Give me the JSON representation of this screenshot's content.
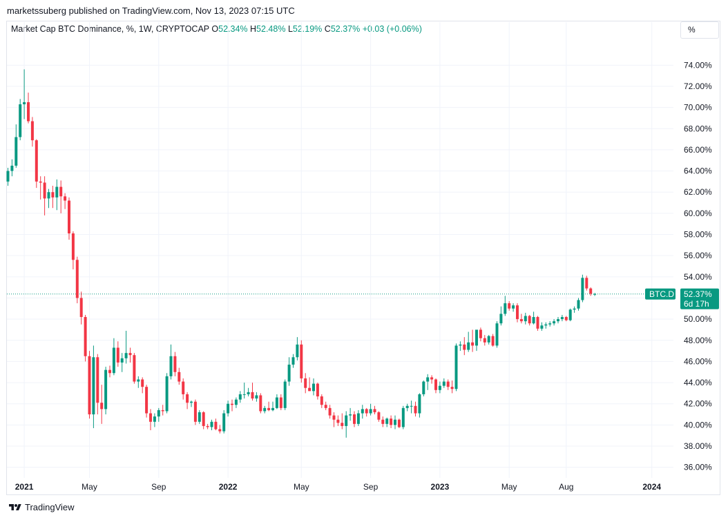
{
  "publish_line": "marketssuberg published on TradingView.com, Nov 13, 2023 07:15 UTC",
  "legend": {
    "symbol": "Market Cap BTC Dominance, %, 1W, CRYPTOCAP",
    "o_label": "O",
    "o_value": "52.34%",
    "h_label": "H",
    "h_value": "52.48%",
    "l_label": "L",
    "l_value": "52.19%",
    "c_label": "C",
    "c_value": "52.37%",
    "change": "+0.03 (+0.06%)"
  },
  "unit_button": "%",
  "price_tag": {
    "name": "BTC.D",
    "value": "52.37%",
    "countdown": "6d 17h"
  },
  "footer": {
    "brand": "TradingView",
    "logo_icon": "tradingview-logo-icon"
  },
  "colors": {
    "up": "#089981",
    "down": "#f23645",
    "grid": "#f0f3fa",
    "text": "#131722"
  },
  "chart_data": {
    "type": "candlestick",
    "title": "Market Cap BTC Dominance, %, 1W, CRYPTOCAP",
    "x_ticks": [
      {
        "week": 4,
        "label": "2021",
        "bold": true
      },
      {
        "week": 20,
        "label": "May",
        "bold": false
      },
      {
        "week": 37,
        "label": "Sep",
        "bold": false
      },
      {
        "week": 54,
        "label": "2022",
        "bold": true
      },
      {
        "week": 72,
        "label": "May",
        "bold": false
      },
      {
        "week": 89,
        "label": "Sep",
        "bold": false
      },
      {
        "week": 106,
        "label": "2023",
        "bold": true
      },
      {
        "week": 123,
        "label": "May",
        "bold": false
      },
      {
        "week": 137,
        "label": "Aug",
        "bold": false
      },
      {
        "week": 158,
        "label": "2024",
        "bold": true
      }
    ],
    "y_ticks": [
      36,
      38,
      40,
      42,
      44,
      46,
      48,
      50,
      52,
      54,
      56,
      58,
      60,
      62,
      64,
      66,
      68,
      70,
      72,
      74
    ],
    "y_tick_suffix": "%",
    "ylim": [
      35,
      76.5
    ],
    "weeks": [
      [
        63.0,
        64.3,
        62.6,
        64.0
      ],
      [
        64.0,
        65.1,
        63.5,
        64.5
      ],
      [
        64.5,
        68.4,
        64.3,
        67.2
      ],
      [
        67.2,
        70.8,
        66.9,
        70.3
      ],
      [
        70.3,
        73.6,
        68.9,
        70.5
      ],
      [
        70.5,
        71.4,
        68.5,
        68.7
      ],
      [
        68.7,
        69.1,
        66.3,
        66.9
      ],
      [
        66.9,
        67.0,
        62.4,
        63.0
      ],
      [
        63.0,
        63.5,
        61.3,
        62.9
      ],
      [
        62.9,
        63.5,
        59.8,
        61.4
      ],
      [
        61.4,
        62.3,
        60.5,
        62.0
      ],
      [
        62.0,
        62.6,
        60.5,
        61.5
      ],
      [
        61.5,
        63.2,
        60.3,
        62.5
      ],
      [
        62.5,
        63.1,
        60.0,
        61.6
      ],
      [
        61.6,
        61.9,
        60.4,
        61.2
      ],
      [
        61.2,
        61.5,
        57.5,
        58.1
      ],
      [
        58.1,
        58.3,
        54.7,
        55.6
      ],
      [
        55.6,
        55.9,
        51.5,
        52.0
      ],
      [
        52.0,
        52.6,
        49.5,
        50.2
      ],
      [
        50.2,
        50.4,
        46.0,
        46.5
      ],
      [
        46.5,
        47.0,
        40.6,
        41.0
      ],
      [
        41.0,
        47.5,
        39.7,
        46.4
      ],
      [
        46.4,
        46.7,
        41.0,
        42.1
      ],
      [
        42.1,
        43.8,
        40.1,
        41.5
      ],
      [
        41.5,
        45.5,
        41.0,
        45.2
      ],
      [
        45.2,
        45.6,
        44.5,
        44.9
      ],
      [
        44.9,
        48.2,
        44.7,
        47.3
      ],
      [
        47.3,
        47.9,
        45.5,
        45.9
      ],
      [
        45.9,
        46.8,
        45.0,
        46.3
      ],
      [
        46.3,
        48.9,
        45.8,
        46.8
      ],
      [
        46.8,
        47.3,
        45.9,
        46.6
      ],
      [
        46.6,
        46.8,
        43.9,
        44.1
      ],
      [
        44.1,
        44.6,
        43.5,
        44.3
      ],
      [
        44.3,
        44.5,
        43.0,
        43.6
      ],
      [
        43.6,
        43.8,
        40.7,
        41.1
      ],
      [
        41.1,
        41.5,
        39.5,
        40.3
      ],
      [
        40.3,
        41.1,
        39.8,
        40.8
      ],
      [
        40.8,
        41.6,
        40.3,
        41.4
      ],
      [
        41.4,
        41.9,
        40.9,
        41.3
      ],
      [
        41.3,
        44.9,
        41.1,
        44.6
      ],
      [
        44.6,
        47.6,
        44.3,
        46.5
      ],
      [
        46.5,
        46.9,
        44.6,
        45.0
      ],
      [
        45.0,
        45.4,
        43.8,
        44.1
      ],
      [
        44.1,
        44.4,
        42.4,
        42.9
      ],
      [
        42.9,
        43.1,
        41.5,
        42.1
      ],
      [
        42.1,
        42.3,
        41.7,
        42.2
      ],
      [
        42.2,
        42.4,
        40.0,
        40.3
      ],
      [
        40.3,
        41.4,
        40.1,
        41.2
      ],
      [
        41.2,
        41.3,
        39.6,
        39.9
      ],
      [
        39.9,
        40.1,
        39.6,
        39.8
      ],
      [
        39.8,
        40.5,
        39.5,
        40.3
      ],
      [
        40.3,
        40.6,
        39.5,
        39.6
      ],
      [
        39.6,
        40.0,
        39.2,
        39.4
      ],
      [
        39.4,
        41.4,
        39.2,
        41.1
      ],
      [
        41.1,
        42.3,
        40.8,
        42.0
      ],
      [
        42.0,
        42.4,
        41.3,
        41.9
      ],
      [
        41.9,
        42.6,
        41.6,
        42.4
      ],
      [
        42.4,
        43.2,
        42.1,
        42.9
      ],
      [
        42.9,
        44.0,
        42.5,
        42.9
      ],
      [
        42.9,
        43.5,
        42.7,
        43.1
      ],
      [
        43.1,
        44.0,
        42.3,
        42.5
      ],
      [
        42.5,
        43.1,
        42.2,
        42.8
      ],
      [
        42.8,
        43.0,
        41.1,
        41.3
      ],
      [
        41.3,
        41.8,
        41.1,
        41.6
      ],
      [
        41.6,
        42.2,
        41.3,
        41.4
      ],
      [
        41.4,
        42.2,
        41.3,
        41.6
      ],
      [
        41.6,
        42.9,
        41.5,
        42.6
      ],
      [
        42.6,
        42.9,
        41.4,
        41.6
      ],
      [
        41.6,
        44.3,
        41.4,
        44.1
      ],
      [
        44.1,
        46.4,
        43.7,
        45.7
      ],
      [
        45.7,
        46.7,
        45.4,
        46.4
      ],
      [
        46.4,
        48.3,
        46.1,
        47.6
      ],
      [
        47.6,
        48.0,
        44.0,
        44.4
      ],
      [
        44.4,
        44.9,
        43.0,
        43.5
      ],
      [
        43.5,
        44.5,
        43.2,
        43.2
      ],
      [
        43.2,
        44.4,
        42.8,
        43.9
      ],
      [
        43.9,
        44.0,
        42.4,
        42.7
      ],
      [
        42.7,
        42.9,
        41.6,
        41.9
      ],
      [
        41.9,
        42.2,
        41.4,
        41.6
      ],
      [
        41.6,
        41.9,
        40.6,
        40.9
      ],
      [
        40.9,
        41.2,
        39.8,
        40.5
      ],
      [
        40.5,
        40.9,
        39.9,
        40.2
      ],
      [
        40.2,
        41.1,
        39.6,
        39.9
      ],
      [
        39.9,
        41.3,
        38.8,
        40.9
      ],
      [
        40.9,
        41.6,
        40.4,
        41.0
      ],
      [
        41.0,
        41.3,
        39.8,
        40.1
      ],
      [
        40.1,
        41.4,
        39.9,
        41.1
      ],
      [
        41.1,
        41.9,
        40.6,
        41.5
      ],
      [
        41.5,
        41.6,
        40.8,
        41.1
      ],
      [
        41.1,
        42.0,
        40.9,
        41.5
      ],
      [
        41.5,
        41.8,
        41.0,
        41.2
      ],
      [
        41.2,
        41.3,
        40.3,
        40.5
      ],
      [
        40.5,
        40.8,
        39.8,
        40.1
      ],
      [
        40.1,
        40.7,
        39.8,
        40.6
      ],
      [
        40.6,
        40.9,
        39.7,
        40.0
      ],
      [
        40.0,
        40.9,
        39.6,
        40.5
      ],
      [
        40.5,
        40.6,
        39.7,
        39.8
      ],
      [
        39.8,
        41.8,
        39.6,
        41.6
      ],
      [
        41.6,
        42.0,
        41.3,
        41.8
      ],
      [
        41.8,
        42.3,
        41.1,
        41.8
      ],
      [
        41.8,
        42.2,
        40.8,
        41.1
      ],
      [
        41.1,
        43.0,
        40.7,
        42.9
      ],
      [
        42.9,
        44.2,
        42.7,
        44.1
      ],
      [
        44.1,
        44.8,
        43.3,
        44.5
      ],
      [
        44.5,
        44.7,
        43.9,
        44.3
      ],
      [
        44.3,
        44.4,
        43.0,
        43.3
      ],
      [
        43.3,
        44.1,
        43.0,
        43.7
      ],
      [
        43.7,
        44.4,
        43.5,
        44.1
      ],
      [
        44.1,
        44.3,
        43.3,
        43.6
      ],
      [
        43.6,
        44.2,
        43.0,
        43.4
      ],
      [
        43.4,
        47.7,
        43.2,
        47.5
      ],
      [
        47.5,
        47.9,
        47.0,
        47.6
      ],
      [
        47.6,
        48.3,
        46.6,
        47.1
      ],
      [
        47.1,
        48.8,
        46.9,
        47.8
      ],
      [
        47.8,
        49.0,
        46.9,
        47.5
      ],
      [
        47.5,
        49.0,
        47.0,
        49.0
      ],
      [
        49.0,
        49.2,
        47.9,
        48.2
      ],
      [
        48.2,
        48.5,
        47.5,
        47.8
      ],
      [
        47.8,
        48.5,
        47.6,
        48.4
      ],
      [
        48.4,
        48.6,
        47.4,
        47.5
      ],
      [
        47.5,
        49.8,
        47.3,
        49.6
      ],
      [
        49.6,
        51.2,
        49.4,
        50.5
      ],
      [
        50.5,
        52.2,
        50.3,
        51.5
      ],
      [
        51.5,
        51.7,
        50.8,
        51.0
      ],
      [
        51.0,
        51.5,
        50.7,
        51.3
      ],
      [
        51.3,
        51.5,
        49.7,
        50.0
      ],
      [
        50.0,
        50.5,
        49.6,
        49.8
      ],
      [
        49.8,
        50.6,
        49.5,
        50.3
      ],
      [
        50.3,
        50.4,
        49.4,
        49.6
      ],
      [
        49.6,
        50.7,
        49.5,
        50.2
      ],
      [
        50.2,
        50.3,
        48.9,
        49.1
      ],
      [
        49.1,
        49.7,
        48.9,
        49.4
      ],
      [
        49.4,
        49.7,
        49.1,
        49.5
      ],
      [
        49.5,
        49.8,
        49.3,
        49.6
      ],
      [
        49.6,
        50.0,
        49.4,
        49.8
      ],
      [
        49.8,
        50.2,
        49.6,
        50.0
      ],
      [
        50.0,
        50.4,
        49.8,
        50.2
      ],
      [
        50.2,
        50.3,
        49.8,
        49.9
      ],
      [
        49.9,
        51.0,
        49.8,
        50.9
      ],
      [
        50.9,
        51.2,
        50.6,
        51.0
      ],
      [
        51.0,
        52.0,
        50.8,
        51.8
      ],
      [
        51.8,
        54.2,
        51.6,
        53.9
      ],
      [
        53.9,
        54.1,
        52.7,
        52.9
      ],
      [
        52.9,
        53.0,
        52.2,
        52.4
      ],
      [
        52.34,
        52.48,
        52.19,
        52.37
      ]
    ],
    "last_close": 52.37
  }
}
